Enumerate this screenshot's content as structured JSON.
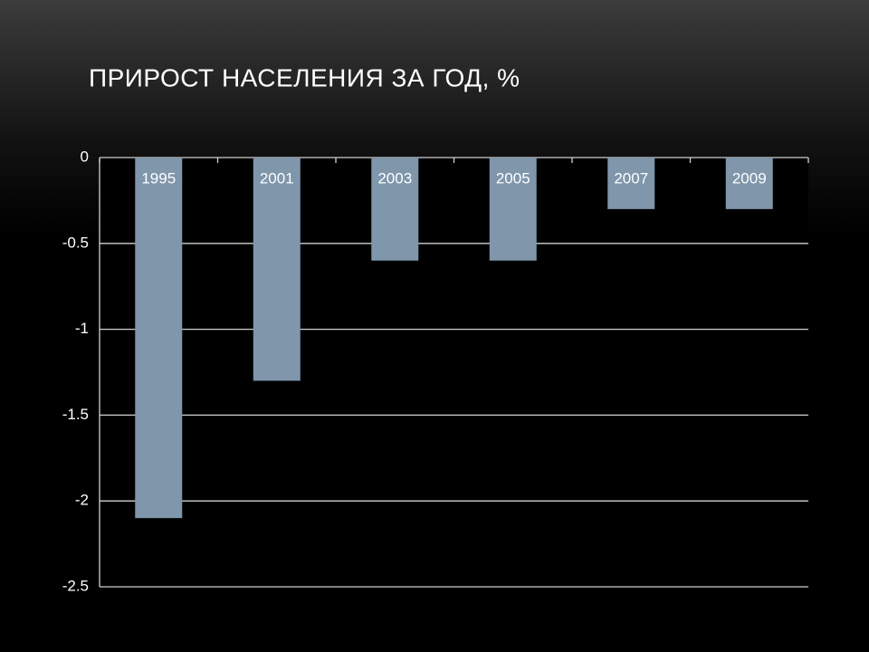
{
  "chart_data": {
    "type": "bar",
    "title": "ПРИРОСТ НАСЕЛЕНИЯ ЗА ГОД, %",
    "categories": [
      "1995",
      "2001",
      "2003",
      "2005",
      "2007",
      "2009"
    ],
    "values": [
      -2.1,
      -1.3,
      -0.6,
      -0.6,
      -0.3,
      -0.3
    ],
    "color": "#7f96ab",
    "ylim": [
      -2.5,
      0
    ],
    "yticks": [
      0,
      -0.5,
      -1,
      -1.5,
      -2,
      -2.5
    ],
    "grid": true
  }
}
